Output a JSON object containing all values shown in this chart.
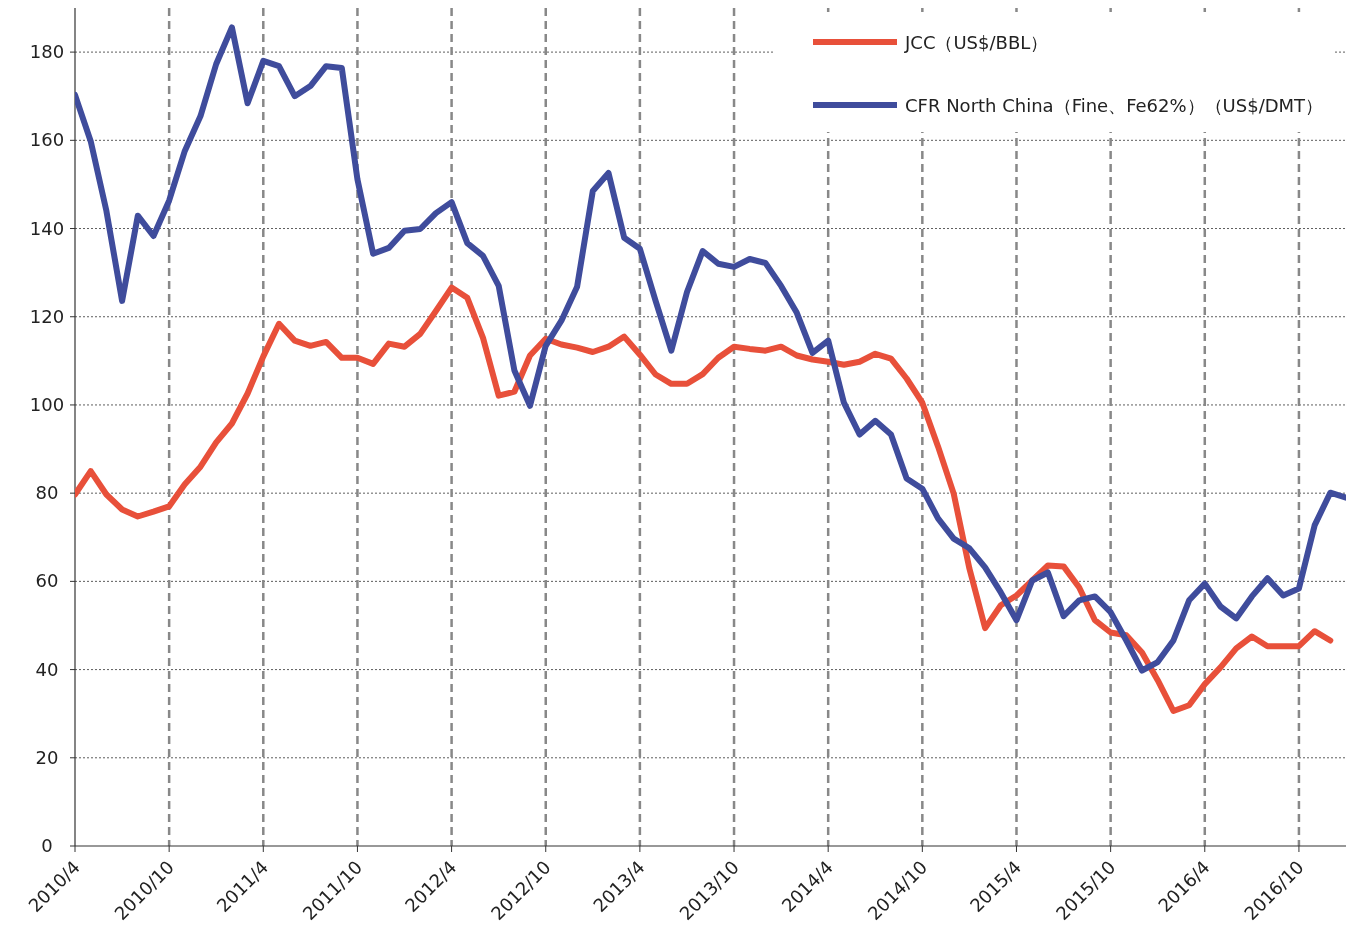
{
  "chart_data": {
    "type": "line",
    "legend": "top right",
    "grid": true,
    "marker": "none",
    "line_style": "solid",
    "x": [
      "2010-04",
      "2010-05",
      "2010-06",
      "2010-07",
      "2010-08",
      "2010-09",
      "2010-10",
      "2010-11",
      "2010-12",
      "2011-01",
      "2011-02",
      "2011-03",
      "2011-04",
      "2011-05",
      "2011-06",
      "2011-07",
      "2011-08",
      "2011-09",
      "2011-10",
      "2011-11",
      "2011-12",
      "2012-01",
      "2012-02",
      "2012-03",
      "2012-04",
      "2012-05",
      "2012-06",
      "2012-07",
      "2012-08",
      "2012-09",
      "2012-10",
      "2012-11",
      "2012-12",
      "2013-01",
      "2013-02",
      "2013-03",
      "2013-04",
      "2013-05",
      "2013-06",
      "2013-07",
      "2013-08",
      "2013-09",
      "2013-10",
      "2013-11",
      "2013-12",
      "2014-01",
      "2014-02",
      "2014-03",
      "2014-04",
      "2014-05",
      "2014-06",
      "2014-07",
      "2014-08",
      "2014-09",
      "2014-10",
      "2014-11",
      "2014-12",
      "2015-01",
      "2015-02",
      "2015-03",
      "2015-04",
      "2015-05",
      "2015-06",
      "2015-07",
      "2015-08",
      "2015-09",
      "2015-10",
      "2015-11",
      "2015-12",
      "2016-01",
      "2016-02",
      "2016-03",
      "2016-04",
      "2016-05",
      "2016-06",
      "2016-07",
      "2016-08",
      "2016-09",
      "2016-10",
      "2016-11",
      "2016-12",
      "2017-01"
    ],
    "xlim": [
      "2010-04",
      "2017-01"
    ],
    "xticks": [
      {
        "value": "2010-04",
        "label": "2010/4"
      },
      {
        "value": "2010-10",
        "label": "2010/10"
      },
      {
        "value": "2011-04",
        "label": "2011/4"
      },
      {
        "value": "2011-10",
        "label": "2011/10"
      },
      {
        "value": "2012-04",
        "label": "2012/4"
      },
      {
        "value": "2012-10",
        "label": "2012/10"
      },
      {
        "value": "2013-04",
        "label": "2013/4"
      },
      {
        "value": "2013-10",
        "label": "2013/10"
      },
      {
        "value": "2014-04",
        "label": "2014/4"
      },
      {
        "value": "2014-10",
        "label": "2014/10"
      },
      {
        "value": "2015-04",
        "label": "2015/4"
      },
      {
        "value": "2015-10",
        "label": "2015/10"
      },
      {
        "value": "2016-04",
        "label": "2016/4"
      },
      {
        "value": "2016-10",
        "label": "2016/10"
      }
    ],
    "ylim": [
      0,
      190
    ],
    "yticks": [
      0,
      20,
      40,
      60,
      80,
      100,
      120,
      140,
      160,
      180
    ],
    "series": [
      {
        "name": "JCC（US$/BBL）",
        "color": "#e8503a",
        "values": [
          79.7,
          85,
          79.7,
          76.3,
          74.7,
          75.8,
          77,
          82,
          86,
          91.5,
          95.8,
          102.6,
          111,
          118.4,
          114.6,
          113.4,
          114.3,
          110.7,
          110.7,
          109.3,
          113.9,
          113.2,
          116.1,
          121.3,
          126.6,
          124.3,
          115.2,
          102.1,
          103,
          111.2,
          115,
          113.7,
          113,
          112,
          113.2,
          115.5,
          111.4,
          106.9,
          104.8,
          104.8,
          107,
          110.7,
          113.2,
          112.7,
          112.3,
          113.2,
          111.2,
          110.3,
          109.8,
          109.1,
          109.8,
          111.6,
          110.5,
          106,
          100.5,
          90.6,
          79.9,
          62.9,
          49.4,
          54.6,
          56.8,
          60.2,
          63.6,
          63.4,
          58.6,
          51.2,
          48.4,
          47.8,
          43.9,
          37.6,
          30.6,
          31.9,
          36.7,
          40.5,
          44.8,
          47.5,
          45.3,
          45.3,
          45.3,
          48.7,
          46.6,
          null
        ]
      },
      {
        "name": "CFR North China（Fine、Fe62%）（US$/DMT）",
        "color": "#3f4c9c",
        "values": [
          170.3,
          159.8,
          144,
          123.6,
          142.9,
          138.3,
          146.3,
          157.6,
          165.5,
          177.3,
          185.6,
          168.4,
          178,
          176.8,
          170,
          172.3,
          176.8,
          176.4,
          151.2,
          134.3,
          135.6,
          139.5,
          139.9,
          143.5,
          146,
          136.7,
          133.8,
          127,
          107.8,
          99.8,
          113.4,
          119.1,
          126.8,
          148.5,
          152.6,
          137.9,
          135.4,
          123.6,
          112.3,
          125.6,
          134.9,
          132,
          131.3,
          133.1,
          132.2,
          127,
          120.9,
          111.8,
          114.6,
          100.5,
          93.3,
          96.4,
          93.3,
          83.3,
          81,
          74.3,
          69.7,
          67.5,
          63.2,
          57.5,
          51.2,
          60.2,
          62,
          52.1,
          55.7,
          56.6,
          53,
          46.6,
          39.8,
          41.7,
          46.6,
          55.7,
          59.5,
          54.3,
          51.6,
          56.6,
          60.7,
          56.8,
          58.4,
          72.7,
          80.1,
          79
        ]
      }
    ]
  }
}
